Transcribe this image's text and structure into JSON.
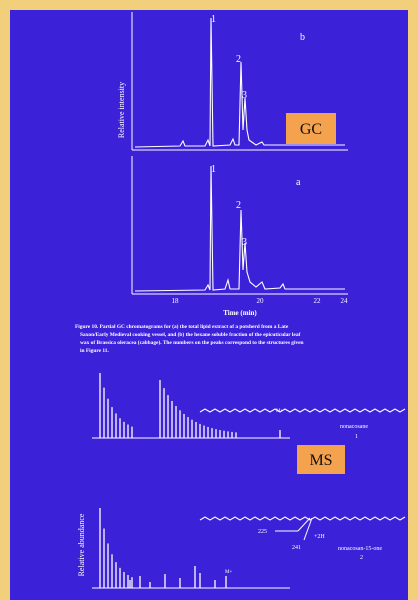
{
  "gc": {
    "y_label": "Relative intensity",
    "panel_b": "b",
    "panel_a": "a",
    "peaks_b": [
      "1",
      "2",
      "3"
    ],
    "peaks_a": [
      "1",
      "2",
      "3"
    ],
    "x_ticks": [
      "18",
      "20",
      "22",
      "24"
    ],
    "x_label": "Time (min)",
    "tag": "GC"
  },
  "caption": {
    "lines": [
      "Figure 10. Partial GC chromatograms for (a) the total lipid extract of a potsherd from a Late",
      "Saxon/Early Medieval cooking vessel, and (b) the hexane soluble fraction of the epicuticular leaf",
      "wax of Brassica oleracea (cabbage). The numbers on the peaks correspond to the structures given",
      "in Figure 11."
    ]
  },
  "ms": {
    "tag": "MS",
    "y_label": "Relative abundance",
    "compound_1": "nonacosane",
    "compound_1_num": "1",
    "compound_2": "nonacosan-15-one",
    "compound_2_num": "2",
    "frag_225": "225",
    "frag_241": "241",
    "frag_2h": "+2H",
    "mol_ion_1": "M+",
    "mol_ion_2": "M+"
  }
}
